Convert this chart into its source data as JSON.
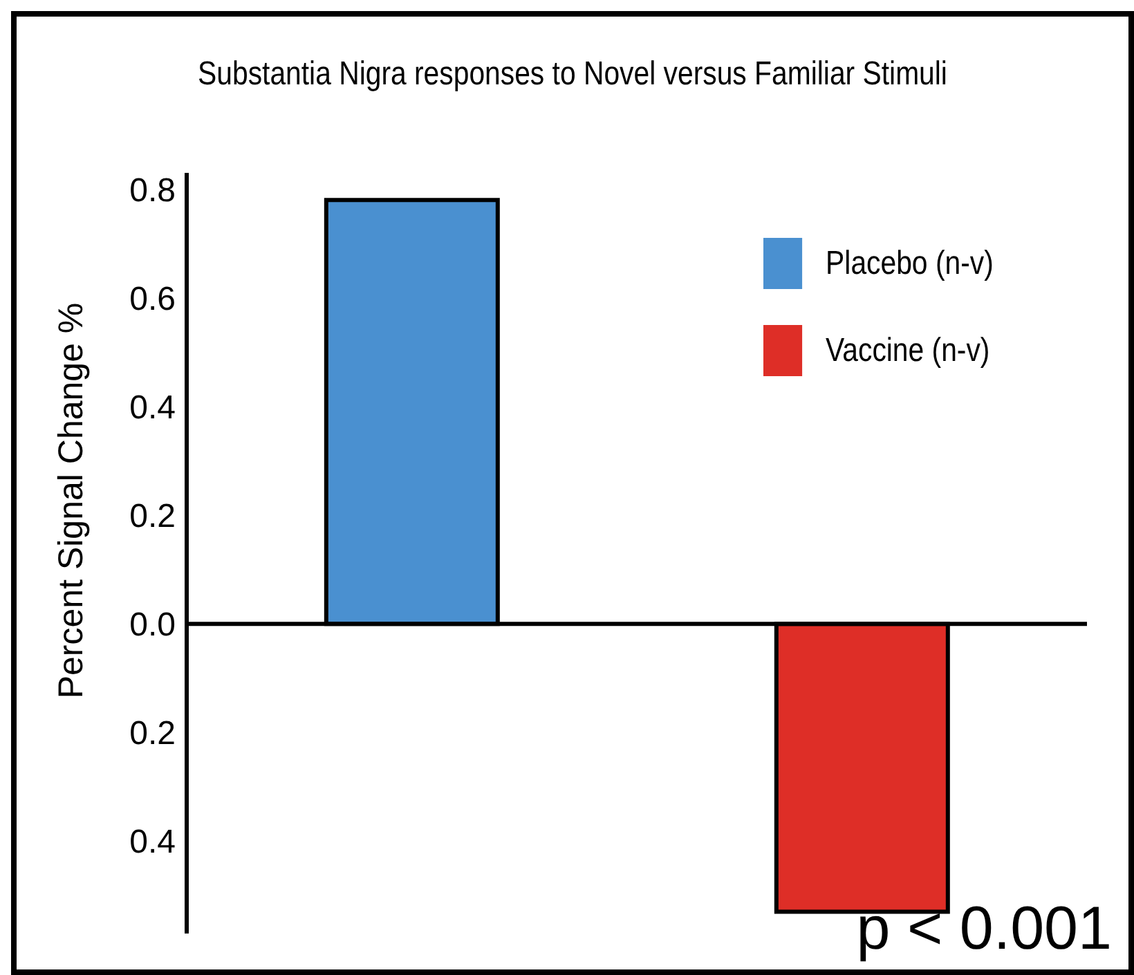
{
  "chart_data": {
    "type": "bar",
    "title": "Substantia Nigra responses to Novel versus Familiar Stimuli",
    "ylabel": "Percent Signal Change %",
    "categories": [
      null,
      null
    ],
    "series": [
      {
        "name": "Placebo (n-v)",
        "color": "#4a90d0",
        "values": [
          0.78,
          null
        ]
      },
      {
        "name": "Vaccine (n-v)",
        "color": "#de2e27",
        "values": [
          null,
          -0.53
        ]
      }
    ],
    "stacked": true,
    "ylim": [
      -0.57,
      0.83
    ],
    "yticks": [
      {
        "value": -0.4,
        "label": "0.4"
      },
      {
        "value": -0.2,
        "label": "0.2"
      },
      {
        "value": 0,
        "label": "0.0"
      },
      {
        "value": 0.2,
        "label": "0.2"
      },
      {
        "value": 0.4,
        "label": "0.4"
      },
      {
        "value": 0.6,
        "label": "0.6"
      },
      {
        "value": 0.8,
        "label": "0.8"
      }
    ],
    "legend": "top right",
    "annotations": [
      "p < 0.001"
    ]
  }
}
